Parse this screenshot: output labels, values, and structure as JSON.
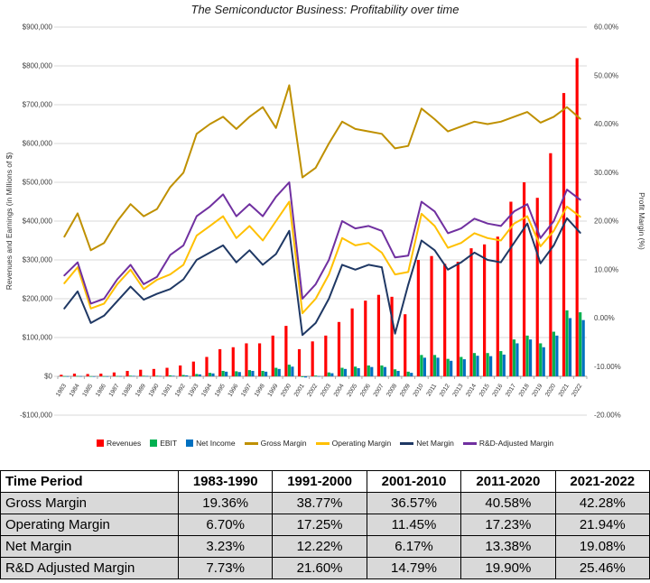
{
  "chart_data": {
    "type": "combo",
    "title": "The Semiconductor Business: Profitability over time",
    "years": [
      "1983",
      "1984",
      "1985",
      "1986",
      "1987",
      "1988",
      "1989",
      "1990",
      "1991",
      "1992",
      "1993",
      "1994",
      "1995",
      "1996",
      "1997",
      "1998",
      "1999",
      "2000",
      "2001",
      "2002",
      "2003",
      "2004",
      "2005",
      "2006",
      "2007",
      "2008",
      "2009",
      "2010",
      "2011",
      "2012",
      "2013",
      "2014",
      "2015",
      "2016",
      "2017",
      "2018",
      "2019",
      "2020",
      "2021",
      "2022"
    ],
    "y_left": {
      "label": "Revenues and Earnings (in Millions of $)",
      "min": -100000,
      "max": 900000,
      "step": 100000,
      "ticks": [
        "$900,000",
        "$800,000",
        "$700,000",
        "$600,000",
        "$500,000",
        "$400,000",
        "$300,000",
        "$200,000",
        "$100,000",
        "$0",
        "-$100,000"
      ]
    },
    "y_right": {
      "label": "Profit Margin (%)",
      "min": -20,
      "max": 60,
      "step": 10,
      "ticks": [
        "60.00%",
        "50.00%",
        "40.00%",
        "30.00%",
        "20.00%",
        "10.00%",
        "0.00%",
        "-10.00%",
        "-20.00%"
      ]
    },
    "bar_series": [
      {
        "name": "Revenues",
        "color": "#FF0000",
        "values": [
          4000,
          7000,
          6000,
          7000,
          10000,
          14000,
          17000,
          19000,
          22000,
          28000,
          38000,
          50000,
          70000,
          75000,
          85000,
          85000,
          105000,
          130000,
          70000,
          90000,
          105000,
          140000,
          175000,
          195000,
          210000,
          205000,
          160000,
          300000,
          310000,
          290000,
          295000,
          330000,
          340000,
          360000,
          450000,
          500000,
          460000,
          575000,
          730000,
          820000
        ]
      },
      {
        "name": "EBIT",
        "color": "#00B050",
        "values": [
          500,
          900,
          300,
          400,
          900,
          1600,
          1500,
          1600,
          2500,
          3500,
          6000,
          9000,
          14000,
          13000,
          16000,
          14000,
          22000,
          30000,
          -2000,
          2000,
          10000,
          22000,
          25000,
          28000,
          28000,
          18000,
          12000,
          55000,
          55000,
          45000,
          50000,
          60000,
          60000,
          65000,
          95000,
          105000,
          85000,
          115000,
          170000,
          165000
        ]
      },
      {
        "name": "Net Income",
        "color": "#0070C0",
        "values": [
          300,
          600,
          100,
          200,
          600,
          1200,
          1000,
          1100,
          1500,
          2500,
          5000,
          7500,
          12000,
          11000,
          14000,
          12000,
          19000,
          25000,
          -3000,
          500,
          8000,
          19000,
          21000,
          24000,
          24000,
          14000,
          9000,
          48000,
          48000,
          40000,
          44000,
          53000,
          52000,
          56000,
          85000,
          95000,
          75000,
          105000,
          150000,
          145000
        ]
      }
    ],
    "line_series": [
      {
        "name": "Gross Margin",
        "color": "#BF9000",
        "values": [
          16.8,
          21.6,
          14.0,
          15.5,
          20.0,
          23.5,
          21.0,
          22.5,
          27.0,
          30.0,
          38.0,
          40.0,
          41.5,
          39.0,
          41.5,
          43.5,
          39.2,
          48.0,
          29.0,
          31.0,
          36.0,
          40.5,
          39.0,
          38.5,
          38.0,
          35.0,
          35.5,
          43.2,
          41.0,
          38.5,
          39.5,
          40.5,
          40.0,
          40.5,
          41.5,
          42.5,
          40.3,
          41.5,
          43.5,
          41.1
        ]
      },
      {
        "name": "Operating Margin",
        "color": "#FFC000",
        "values": [
          7.2,
          10.5,
          2.0,
          3.0,
          7.0,
          10.0,
          6.0,
          7.9,
          9.0,
          11.0,
          17.0,
          19.0,
          21.0,
          16.5,
          19.0,
          16.0,
          20.0,
          24.0,
          1.0,
          4.0,
          9.0,
          16.5,
          15.0,
          15.5,
          13.5,
          9.0,
          9.5,
          21.5,
          19.0,
          14.5,
          15.5,
          17.5,
          16.5,
          16.0,
          19.5,
          21.0,
          14.8,
          18.0,
          23.0,
          20.9
        ]
      },
      {
        "name": "Net Margin",
        "color": "#1F3864",
        "values": [
          2.0,
          5.5,
          -1.0,
          0.5,
          3.5,
          6.5,
          3.8,
          5.0,
          6.0,
          8.0,
          12.0,
          13.5,
          15.0,
          11.5,
          14.0,
          11.0,
          13.2,
          18.0,
          -3.5,
          -1.0,
          4.0,
          11.0,
          10.0,
          11.0,
          10.5,
          -3.2,
          6.9,
          16.0,
          14.0,
          10.0,
          11.5,
          13.5,
          12.0,
          11.5,
          15.5,
          19.5,
          11.3,
          15.0,
          20.6,
          17.6
        ]
      },
      {
        "name": "R&D-Adjusted Margin",
        "color": "#7030A0",
        "values": [
          8.8,
          11.5,
          3.0,
          4.0,
          8.0,
          11.0,
          7.0,
          8.5,
          13.0,
          15.0,
          21.0,
          23.0,
          25.5,
          21.0,
          23.5,
          21.0,
          25.0,
          28.0,
          4.0,
          7.0,
          12.0,
          20.0,
          18.5,
          19.0,
          18.0,
          12.5,
          12.9,
          24.0,
          22.0,
          17.5,
          18.5,
          20.5,
          19.5,
          19.0,
          22.0,
          23.5,
          16.5,
          20.0,
          26.5,
          24.4
        ]
      }
    ]
  },
  "table": {
    "header": [
      "Time Period",
      "1983-1990",
      "1991-2000",
      "2001-2010",
      "2011-2020",
      "2021-2022"
    ],
    "rows": [
      {
        "label": "Gross Margin",
        "values": [
          "19.36%",
          "38.77%",
          "36.57%",
          "40.58%",
          "42.28%"
        ]
      },
      {
        "label": "Operating Margin",
        "values": [
          "6.70%",
          "17.25%",
          "11.45%",
          "17.23%",
          "21.94%"
        ]
      },
      {
        "label": "Net Margin",
        "values": [
          "3.23%",
          "12.22%",
          "6.17%",
          "13.38%",
          "19.08%"
        ]
      },
      {
        "label": "R&D Adjusted Margin",
        "values": [
          "7.73%",
          "21.60%",
          "14.79%",
          "19.90%",
          "25.46%"
        ]
      }
    ]
  }
}
